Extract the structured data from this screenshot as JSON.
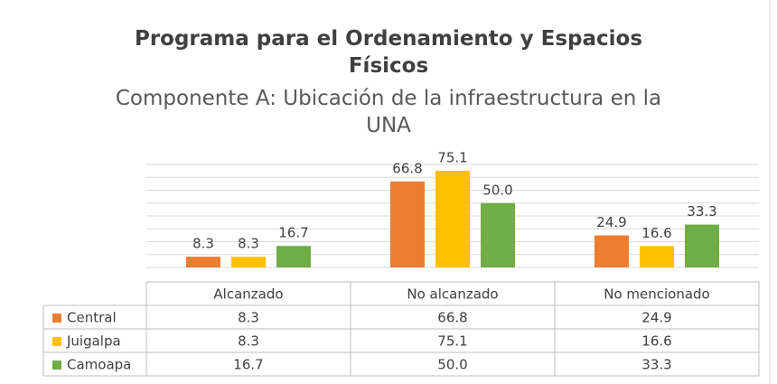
{
  "chart_data": {
    "type": "bar",
    "title": "Programa para el Ordenamiento y Espacios Físicos",
    "subtitle": "Componente A: Ubicación de la infraestructura en la UNA",
    "categories": [
      "Alcanzado",
      "No alcanzado",
      "No mencionado"
    ],
    "series": [
      {
        "name": "Central",
        "color": "#ED7D31",
        "values": [
          8.3,
          66.8,
          24.9
        ]
      },
      {
        "name": "Juigalpa",
        "color": "#FFC000",
        "values": [
          8.3,
          75.1,
          16.6
        ]
      },
      {
        "name": "Camoapa",
        "color": "#70AD47",
        "values": [
          16.7,
          50.0,
          33.3
        ],
        "value_labels": [
          "16.7",
          "50.0",
          "33.3"
        ]
      }
    ],
    "ylim": [
      0,
      80
    ],
    "yticks": [
      0,
      10,
      20,
      30,
      40,
      50,
      60,
      70,
      80
    ],
    "grid": true,
    "data_table": true
  }
}
